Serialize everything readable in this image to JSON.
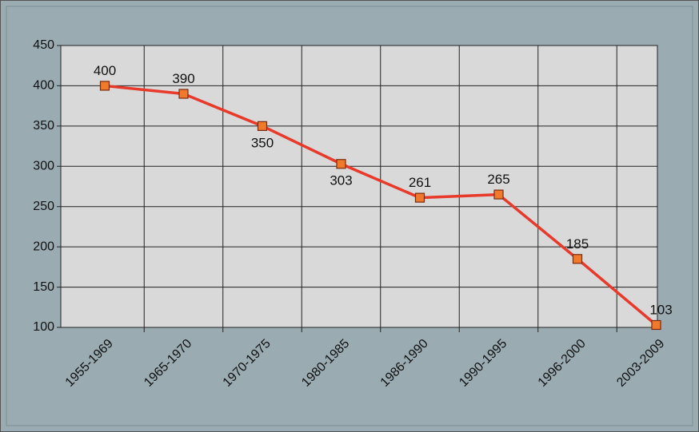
{
  "chart_data": {
    "type": "line",
    "categories": [
      "1955-1969",
      "1965-1970",
      "1970-1975",
      "1980-1985",
      "1986-1990",
      "1990-1995",
      "1996-2000",
      "2003-2009"
    ],
    "series": [
      {
        "color": "#e8392a",
        "values": [
          400,
          390,
          350,
          303,
          261,
          265,
          185,
          103
        ]
      }
    ],
    "ylim": [
      100,
      450
    ],
    "yticks": [
      100,
      150,
      200,
      250,
      300,
      350,
      400,
      450
    ],
    "grid": true
  }
}
